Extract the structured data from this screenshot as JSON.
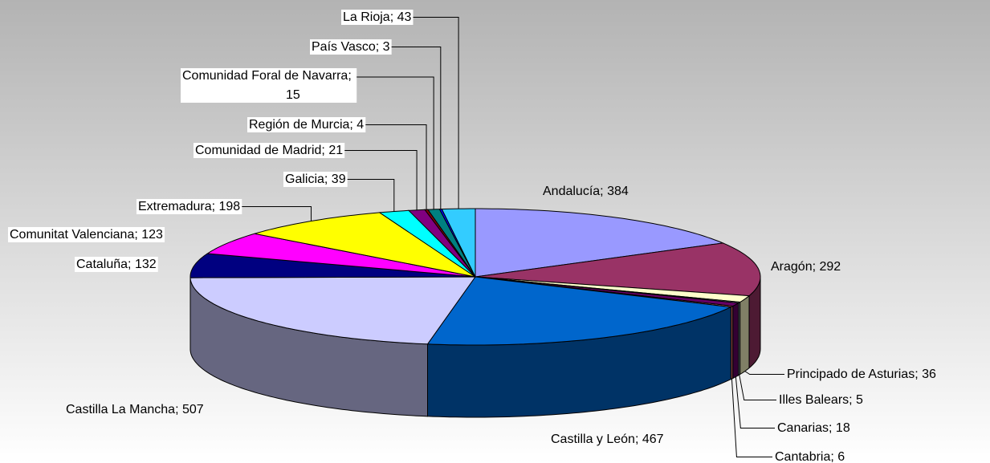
{
  "chart_data": {
    "type": "pie3d",
    "categories": [
      "Andalucía",
      "Aragón",
      "Principado de Asturias",
      "Illes Balears",
      "Canarias",
      "Cantabria",
      "Castilla y León",
      "Castilla La Mancha",
      "Cataluña",
      "Comunitat Valenciana",
      "Extremadura",
      "Galicia",
      "Comunidad de Madrid",
      "Región de Murcia",
      "Comunidad Foral de Navarra",
      "País Vasco",
      "La Rioja"
    ],
    "values": [
      384,
      292,
      36,
      5,
      18,
      6,
      467,
      507,
      132,
      123,
      198,
      39,
      21,
      4,
      15,
      3,
      43
    ],
    "colors": [
      "#9999ff",
      "#993366",
      "#ffffcc",
      "#ccffff",
      "#660066",
      "#ff8080",
      "#0066cc",
      "#ccccff",
      "#000080",
      "#ff00ff",
      "#ffff00",
      "#00ffff",
      "#800080",
      "#800000",
      "#008080",
      "#0000ff",
      "#33ccff"
    ],
    "label_separator": "; "
  }
}
